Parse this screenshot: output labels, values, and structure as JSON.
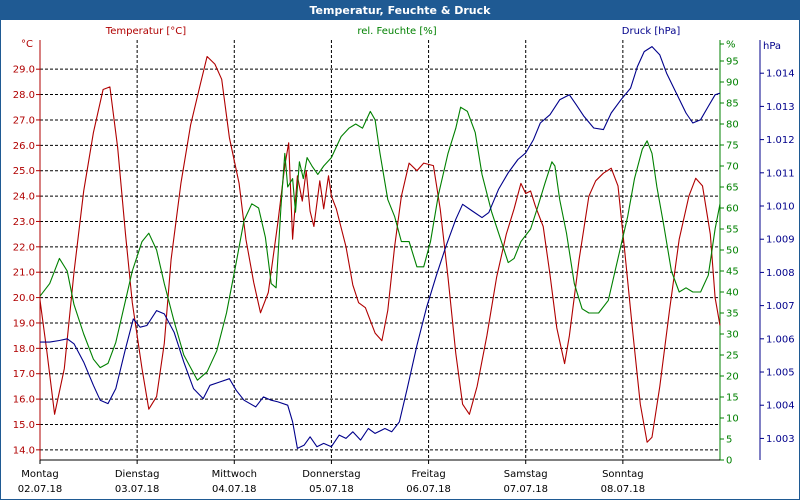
{
  "window": {
    "title": "Temperatur, Feuchte & Druck"
  },
  "chart_data": {
    "type": "line",
    "title": "Temperatur, Feuchte & Druck",
    "grid": true,
    "colors": {
      "temp": "#b00000",
      "hum": "#008000",
      "press": "#00008b"
    },
    "axes": {
      "temp": {
        "unit": "°C",
        "label": "Temperatur [°C]",
        "min": 13.6,
        "max": 30.15,
        "ticks": [
          "14.0",
          "15.0",
          "16.0",
          "17.0",
          "18.0",
          "19.0",
          "20.0",
          "21.0",
          "22.0",
          "23.0",
          "24.0",
          "25.0",
          "26.0",
          "27.0",
          "28.0",
          "29.0"
        ]
      },
      "hum": {
        "unit": "%",
        "label": "rel. Feuchte [%]",
        "min": 0,
        "max": 100,
        "ticks": [
          "0",
          "5",
          "10",
          "15",
          "20",
          "25",
          "30",
          "35",
          "40",
          "45",
          "50",
          "55",
          "60",
          "65",
          "70",
          "75",
          "80",
          "85",
          "90",
          "95",
          "%"
        ]
      },
      "press": {
        "unit": "hPa",
        "label": "Druck [hPa]",
        "min": 1002.35,
        "max": 1015.0,
        "ticks": [
          "1.003",
          "1.004",
          "1.005",
          "1.006",
          "1.007",
          "1.008",
          "1.009",
          "1.010",
          "1.011",
          "1.012",
          "1.013",
          "1.014"
        ]
      }
    },
    "x_labels": [
      {
        "day": "Montag",
        "date": "02.07.18"
      },
      {
        "day": "Dienstag",
        "date": "03.07.18"
      },
      {
        "day": "Mittwoch",
        "date": "04.07.18"
      },
      {
        "day": "Donnerstag",
        "date": "05.07.18"
      },
      {
        "day": "Freitag",
        "date": "06.07.18"
      },
      {
        "day": "Samstag",
        "date": "07.07.18"
      },
      {
        "day": "Sonntag",
        "date": "08.07.18"
      }
    ],
    "x_range": [
      0,
      7
    ],
    "series": [
      {
        "name": "Temperatur [°C]",
        "axis": "temp",
        "color": "#b00000",
        "points": [
          [
            0,
            19.9
          ],
          [
            0.07,
            17.9
          ],
          [
            0.15,
            15.4
          ],
          [
            0.25,
            17.2
          ],
          [
            0.35,
            21.0
          ],
          [
            0.45,
            24.2
          ],
          [
            0.55,
            26.5
          ],
          [
            0.65,
            28.2
          ],
          [
            0.72,
            28.3
          ],
          [
            0.8,
            25.9
          ],
          [
            0.88,
            22.5
          ],
          [
            0.95,
            19.8
          ],
          [
            1.05,
            17.2
          ],
          [
            1.12,
            15.6
          ],
          [
            1.2,
            16.1
          ],
          [
            1.28,
            18.2
          ],
          [
            1.35,
            21.5
          ],
          [
            1.45,
            24.5
          ],
          [
            1.55,
            26.8
          ],
          [
            1.65,
            28.4
          ],
          [
            1.72,
            29.5
          ],
          [
            1.8,
            29.2
          ],
          [
            1.87,
            28.6
          ],
          [
            1.95,
            26.3
          ],
          [
            2.05,
            24.5
          ],
          [
            2.12,
            22.3
          ],
          [
            2.2,
            20.6
          ],
          [
            2.27,
            19.4
          ],
          [
            2.35,
            20.2
          ],
          [
            2.45,
            23.0
          ],
          [
            2.52,
            25.2
          ],
          [
            2.56,
            26.1
          ],
          [
            2.6,
            22.3
          ],
          [
            2.65,
            24.8
          ],
          [
            2.7,
            23.8
          ],
          [
            2.74,
            25.0
          ],
          [
            2.78,
            23.4
          ],
          [
            2.82,
            22.8
          ],
          [
            2.88,
            24.6
          ],
          [
            2.92,
            23.5
          ],
          [
            2.97,
            24.8
          ],
          [
            3.0,
            24.0
          ],
          [
            3.05,
            23.5
          ],
          [
            3.15,
            22.0
          ],
          [
            3.22,
            20.5
          ],
          [
            3.28,
            19.8
          ],
          [
            3.35,
            19.6
          ],
          [
            3.45,
            18.6
          ],
          [
            3.52,
            18.3
          ],
          [
            3.58,
            19.5
          ],
          [
            3.65,
            22.0
          ],
          [
            3.72,
            24.0
          ],
          [
            3.8,
            25.3
          ],
          [
            3.88,
            25.0
          ],
          [
            3.95,
            25.3
          ],
          [
            4.05,
            25.2
          ],
          [
            4.12,
            23.5
          ],
          [
            4.2,
            20.8
          ],
          [
            4.28,
            17.8
          ],
          [
            4.35,
            15.8
          ],
          [
            4.42,
            15.4
          ],
          [
            4.5,
            16.5
          ],
          [
            4.6,
            18.5
          ],
          [
            4.7,
            20.8
          ],
          [
            4.8,
            22.5
          ],
          [
            4.88,
            23.5
          ],
          [
            4.95,
            24.5
          ],
          [
            5.0,
            24.1
          ],
          [
            5.05,
            24.2
          ],
          [
            5.1,
            23.6
          ],
          [
            5.18,
            22.8
          ],
          [
            5.25,
            20.9
          ],
          [
            5.32,
            18.8
          ],
          [
            5.4,
            17.4
          ],
          [
            5.45,
            18.5
          ],
          [
            5.55,
            21.5
          ],
          [
            5.65,
            24.0
          ],
          [
            5.72,
            24.6
          ],
          [
            5.8,
            24.9
          ],
          [
            5.88,
            25.1
          ],
          [
            5.95,
            24.4
          ],
          [
            6.02,
            21.8
          ],
          [
            6.1,
            18.7
          ],
          [
            6.18,
            15.8
          ],
          [
            6.25,
            14.3
          ],
          [
            6.3,
            14.5
          ],
          [
            6.38,
            16.5
          ],
          [
            6.48,
            19.5
          ],
          [
            6.58,
            22.3
          ],
          [
            6.68,
            24.0
          ],
          [
            6.75,
            24.7
          ],
          [
            6.82,
            24.4
          ],
          [
            6.9,
            22.5
          ],
          [
            6.95,
            20.0
          ],
          [
            7.0,
            18.9
          ]
        ]
      },
      {
        "name": "rel. Feuchte [%]",
        "axis": "hum",
        "color": "#008000",
        "points": [
          [
            0,
            39
          ],
          [
            0.1,
            42
          ],
          [
            0.2,
            48
          ],
          [
            0.28,
            45
          ],
          [
            0.35,
            37
          ],
          [
            0.45,
            30
          ],
          [
            0.55,
            24
          ],
          [
            0.62,
            22
          ],
          [
            0.7,
            23
          ],
          [
            0.78,
            28
          ],
          [
            0.85,
            35
          ],
          [
            0.95,
            45
          ],
          [
            1.05,
            52
          ],
          [
            1.12,
            54
          ],
          [
            1.2,
            50
          ],
          [
            1.28,
            42
          ],
          [
            1.38,
            33
          ],
          [
            1.48,
            25
          ],
          [
            1.55,
            22
          ],
          [
            1.62,
            19
          ],
          [
            1.72,
            21
          ],
          [
            1.82,
            26
          ],
          [
            1.92,
            35
          ],
          [
            2.02,
            47
          ],
          [
            2.1,
            57
          ],
          [
            2.18,
            61
          ],
          [
            2.25,
            60
          ],
          [
            2.32,
            53
          ],
          [
            2.38,
            42
          ],
          [
            2.43,
            41
          ],
          [
            2.48,
            60
          ],
          [
            2.52,
            73
          ],
          [
            2.55,
            65
          ],
          [
            2.6,
            67
          ],
          [
            2.63,
            59
          ],
          [
            2.67,
            71
          ],
          [
            2.71,
            67
          ],
          [
            2.75,
            72
          ],
          [
            2.8,
            70
          ],
          [
            2.86,
            68
          ],
          [
            2.92,
            70
          ],
          [
            3.0,
            72
          ],
          [
            3.1,
            77
          ],
          [
            3.18,
            79
          ],
          [
            3.25,
            80
          ],
          [
            3.32,
            79
          ],
          [
            3.4,
            83
          ],
          [
            3.45,
            81
          ],
          [
            3.5,
            73
          ],
          [
            3.58,
            62
          ],
          [
            3.65,
            58
          ],
          [
            3.72,
            52
          ],
          [
            3.8,
            52
          ],
          [
            3.88,
            46
          ],
          [
            3.95,
            46
          ],
          [
            4.02,
            52
          ],
          [
            4.1,
            63
          ],
          [
            4.2,
            73
          ],
          [
            4.28,
            79
          ],
          [
            4.33,
            84
          ],
          [
            4.4,
            83
          ],
          [
            4.48,
            78
          ],
          [
            4.55,
            68
          ],
          [
            4.65,
            59
          ],
          [
            4.75,
            52
          ],
          [
            4.82,
            47
          ],
          [
            4.88,
            48
          ],
          [
            4.95,
            52
          ],
          [
            5.05,
            55
          ],
          [
            5.12,
            60
          ],
          [
            5.2,
            66
          ],
          [
            5.27,
            71
          ],
          [
            5.3,
            70
          ],
          [
            5.35,
            62
          ],
          [
            5.42,
            54
          ],
          [
            5.5,
            42
          ],
          [
            5.58,
            36
          ],
          [
            5.65,
            35
          ],
          [
            5.75,
            35
          ],
          [
            5.85,
            38
          ],
          [
            5.95,
            48
          ],
          [
            6.05,
            58
          ],
          [
            6.12,
            67
          ],
          [
            6.2,
            74
          ],
          [
            6.25,
            76
          ],
          [
            6.3,
            73
          ],
          [
            6.35,
            65
          ],
          [
            6.42,
            56
          ],
          [
            6.5,
            45
          ],
          [
            6.58,
            40
          ],
          [
            6.65,
            41
          ],
          [
            6.72,
            40
          ],
          [
            6.8,
            40
          ],
          [
            6.88,
            44
          ],
          [
            6.95,
            55
          ],
          [
            7.0,
            61
          ]
        ]
      },
      {
        "name": "Druck [hPa]",
        "axis": "press",
        "color": "#00008b",
        "points": [
          [
            0,
            1005.9
          ],
          [
            0.1,
            1005.9
          ],
          [
            0.2,
            1005.95
          ],
          [
            0.28,
            1006.0
          ],
          [
            0.35,
            1005.85
          ],
          [
            0.45,
            1005.3
          ],
          [
            0.55,
            1004.6
          ],
          [
            0.62,
            1004.15
          ],
          [
            0.7,
            1004.05
          ],
          [
            0.78,
            1004.5
          ],
          [
            0.88,
            1005.7
          ],
          [
            0.96,
            1006.6
          ],
          [
            1.03,
            1006.35
          ],
          [
            1.1,
            1006.4
          ],
          [
            1.2,
            1006.85
          ],
          [
            1.28,
            1006.75
          ],
          [
            1.38,
            1006.2
          ],
          [
            1.48,
            1005.3
          ],
          [
            1.58,
            1004.5
          ],
          [
            1.68,
            1004.2
          ],
          [
            1.75,
            1004.6
          ],
          [
            1.85,
            1004.7
          ],
          [
            1.95,
            1004.8
          ],
          [
            2.02,
            1004.45
          ],
          [
            2.1,
            1004.15
          ],
          [
            2.22,
            1003.95
          ],
          [
            2.3,
            1004.25
          ],
          [
            2.38,
            1004.15
          ],
          [
            2.45,
            1004.1
          ],
          [
            2.55,
            1004.0
          ],
          [
            2.6,
            1003.5
          ],
          [
            2.65,
            1002.7
          ],
          [
            2.72,
            1002.8
          ],
          [
            2.78,
            1003.05
          ],
          [
            2.85,
            1002.75
          ],
          [
            2.92,
            1002.85
          ],
          [
            3.0,
            1002.75
          ],
          [
            3.08,
            1003.1
          ],
          [
            3.15,
            1003.0
          ],
          [
            3.22,
            1003.2
          ],
          [
            3.3,
            1002.95
          ],
          [
            3.38,
            1003.3
          ],
          [
            3.45,
            1003.15
          ],
          [
            3.55,
            1003.3
          ],
          [
            3.62,
            1003.2
          ],
          [
            3.7,
            1003.5
          ],
          [
            3.78,
            1004.5
          ],
          [
            3.88,
            1005.8
          ],
          [
            3.98,
            1006.95
          ],
          [
            4.08,
            1007.9
          ],
          [
            4.18,
            1008.8
          ],
          [
            4.28,
            1009.6
          ],
          [
            4.35,
            1010.05
          ],
          [
            4.45,
            1009.85
          ],
          [
            4.55,
            1009.65
          ],
          [
            4.62,
            1009.8
          ],
          [
            4.72,
            1010.5
          ],
          [
            4.82,
            1011.0
          ],
          [
            4.92,
            1011.4
          ],
          [
            5.0,
            1011.6
          ],
          [
            5.08,
            1012.0
          ],
          [
            5.15,
            1012.5
          ],
          [
            5.25,
            1012.75
          ],
          [
            5.35,
            1013.2
          ],
          [
            5.45,
            1013.35
          ],
          [
            5.52,
            1013.05
          ],
          [
            5.6,
            1012.7
          ],
          [
            5.7,
            1012.35
          ],
          [
            5.8,
            1012.3
          ],
          [
            5.88,
            1012.8
          ],
          [
            5.98,
            1013.2
          ],
          [
            6.08,
            1013.55
          ],
          [
            6.15,
            1014.2
          ],
          [
            6.22,
            1014.65
          ],
          [
            6.3,
            1014.8
          ],
          [
            6.38,
            1014.55
          ],
          [
            6.45,
            1014.0
          ],
          [
            6.55,
            1013.4
          ],
          [
            6.65,
            1012.8
          ],
          [
            6.72,
            1012.5
          ],
          [
            6.8,
            1012.6
          ],
          [
            6.88,
            1013.0
          ],
          [
            6.95,
            1013.35
          ],
          [
            7.0,
            1013.4
          ]
        ]
      }
    ]
  }
}
